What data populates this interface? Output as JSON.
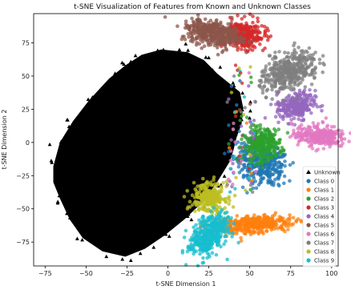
{
  "chart_data": {
    "type": "scatter",
    "title": "t-SNE Visualization of Features from Known and Unknown Classes",
    "xlabel": "t-SNE Dimension 1",
    "ylabel": "t-SNE Dimension 2",
    "xlim": [
      -82,
      104
    ],
    "ylim": [
      -93,
      97
    ],
    "xticks": [
      -75,
      -50,
      -25,
      0,
      25,
      50,
      75,
      100
    ],
    "yticks": [
      -75,
      -50,
      -25,
      0,
      25,
      50,
      75
    ],
    "grid": false,
    "legend_position": "lower-right",
    "unknown_region": [
      [
        -70,
        -18
      ],
      [
        -66,
        0
      ],
      [
        -58,
        16
      ],
      [
        -48,
        32
      ],
      [
        -36,
        48
      ],
      [
        -26,
        58
      ],
      [
        -16,
        66
      ],
      [
        -4,
        70
      ],
      [
        12,
        68
      ],
      [
        22,
        62
      ],
      [
        30,
        52
      ],
      [
        38,
        44
      ],
      [
        44,
        38
      ],
      [
        46,
        26
      ],
      [
        45,
        14
      ],
      [
        42,
        4
      ],
      [
        40,
        -6
      ],
      [
        38,
        -14
      ],
      [
        30,
        -30
      ],
      [
        22,
        -44
      ],
      [
        10,
        -58
      ],
      [
        -2,
        -70
      ],
      [
        -14,
        -80
      ],
      [
        -26,
        -86
      ],
      [
        -40,
        -82
      ],
      [
        -52,
        -72
      ],
      [
        -60,
        -58
      ],
      [
        -66,
        -42
      ],
      [
        -70,
        -30
      ]
    ],
    "series": [
      {
        "name": "Unknown",
        "marker": "triangle",
        "color": "#000000"
      },
      {
        "name": "Class 0",
        "marker": "circle",
        "color": "#1f77b4",
        "centers": [
          [
            58,
            -15
          ],
          [
            52,
            -10
          ],
          [
            62,
            -20
          ]
        ],
        "spread": [
          6,
          7
        ]
      },
      {
        "name": "Class 1",
        "marker": "circle",
        "color": "#ff7f0e",
        "centers": [
          [
            50,
            -62
          ],
          [
            60,
            -60
          ],
          [
            40,
            -64
          ]
        ],
        "spread": [
          9,
          3
        ]
      },
      {
        "name": "Class 2",
        "marker": "circle",
        "color": "#2ca02c",
        "centers": [
          [
            60,
            0
          ],
          [
            56,
            -2
          ]
        ],
        "spread": [
          5,
          6
        ]
      },
      {
        "name": "Class 3",
        "marker": "circle",
        "color": "#d62728",
        "centers": [
          [
            45,
            82
          ],
          [
            48,
            80
          ]
        ],
        "spread": [
          6,
          5
        ]
      },
      {
        "name": "Class 4",
        "marker": "circle",
        "color": "#9467bd",
        "centers": [
          [
            80,
            29
          ],
          [
            76,
            26
          ]
        ],
        "spread": [
          5,
          5
        ]
      },
      {
        "name": "Class 5",
        "marker": "circle",
        "color": "#8c564b",
        "centers": [
          [
            22,
            86
          ],
          [
            28,
            83
          ],
          [
            32,
            78
          ]
        ],
        "spread": [
          7,
          4
        ]
      },
      {
        "name": "Class 6",
        "marker": "circle",
        "color": "#e377c2",
        "centers": [
          [
            94,
            4
          ],
          [
            90,
            6
          ]
        ],
        "spread": [
          7,
          4
        ]
      },
      {
        "name": "Class 7",
        "marker": "circle",
        "color": "#7f7f7f",
        "centers": [
          [
            80,
            60
          ],
          [
            74,
            52
          ],
          [
            68,
            48
          ]
        ],
        "spread": [
          6,
          6
        ]
      },
      {
        "name": "Class 8",
        "marker": "circle",
        "color": "#bcbd22",
        "centers": [
          [
            26,
            -43
          ],
          [
            24,
            -40
          ]
        ],
        "spread": [
          5,
          5
        ]
      },
      {
        "name": "Class 9",
        "marker": "circle",
        "color": "#17becf",
        "centers": [
          [
            26,
            -70
          ],
          [
            20,
            -76
          ],
          [
            30,
            -64
          ]
        ],
        "spread": [
          4,
          6
        ]
      }
    ]
  }
}
